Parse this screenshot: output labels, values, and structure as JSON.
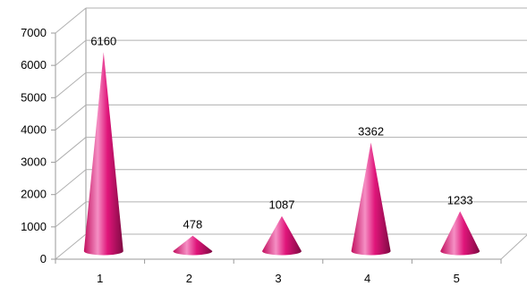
{
  "chart_data": {
    "type": "bar",
    "bar_shape": "3d-cone",
    "title": "",
    "xlabel": "",
    "ylabel": "",
    "categories": [
      "1",
      "2",
      "3",
      "4",
      "5"
    ],
    "values": [
      6160,
      478,
      1087,
      3362,
      1233
    ],
    "data_labels": [
      "6160",
      "478",
      "1087",
      "3362",
      "1233"
    ],
    "y_ticks": [
      "0",
      "1000",
      "2000",
      "3000",
      "4000",
      "5000",
      "6000",
      "7000"
    ],
    "ylim": [
      0,
      7000
    ],
    "grid": true,
    "legend": "none",
    "colors": {
      "cone_light": "#f08cc0",
      "cone_mid": "#e0157a",
      "cone_dark": "#8a0a48",
      "grid": "#b0b0b0",
      "axis": "#9a9a9a"
    }
  }
}
